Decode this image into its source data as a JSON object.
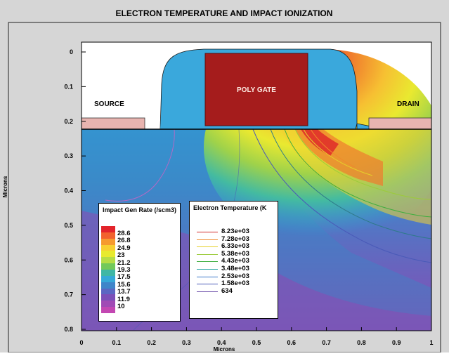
{
  "title": "ELECTRON TEMPERATURE AND IMPACT IONIZATION",
  "axes": {
    "xlabel": "Microns",
    "ylabel": "Microns",
    "xticks": [
      "0",
      "0.1",
      "0.2",
      "0.3",
      "0.4",
      "0.5",
      "0.6",
      "0.7",
      "0.8",
      "0.9",
      "1"
    ],
    "yticks": [
      "0",
      "0.1",
      "0.2",
      "0.3",
      "0.4",
      "0.5",
      "0.6",
      "0.7",
      "0.8"
    ],
    "xlim": [
      0,
      1
    ],
    "ylim": [
      0,
      0.8
    ]
  },
  "regions": {
    "source": "SOURCE",
    "drain": "DRAIN",
    "gate": "POLY GATE"
  },
  "impact_legend": {
    "title": "Impact Gen Rate (/scm3)",
    "labels": [
      "28.6",
      "26.8",
      "24.9",
      "23",
      "21.2",
      "19.3",
      "17.5",
      "15.6",
      "13.7",
      "11.9",
      "10"
    ],
    "colors": [
      "#e3242b",
      "#f2622d",
      "#f69a2f",
      "#f8cf32",
      "#e8ea2e",
      "#b6dd45",
      "#72c95a",
      "#3fb7a5",
      "#35a9d8",
      "#3f85c9",
      "#5a67c3",
      "#7b50b8",
      "#a04ab5",
      "#c347b2"
    ]
  },
  "temp_legend": {
    "title": "Electron Temperature (K",
    "labels": [
      "8.23e+03",
      "7.28e+03",
      "6.33e+03",
      "5.38e+03",
      "4.43e+03",
      "3.48e+03",
      "2.53e+03",
      "1.58e+03",
      "634"
    ],
    "colors": [
      "#d22b2b",
      "#f08a2c",
      "#e6d12a",
      "#9ccb3b",
      "#3fae3f",
      "#2fa7a7",
      "#3a78c8",
      "#4a5ab8",
      "#6a4aa8"
    ]
  },
  "colors": {
    "gate": "#a51c1c",
    "oxide": "#3aa8dc",
    "contact": "#e8b4b0",
    "bg": "#d6d6d6"
  }
}
